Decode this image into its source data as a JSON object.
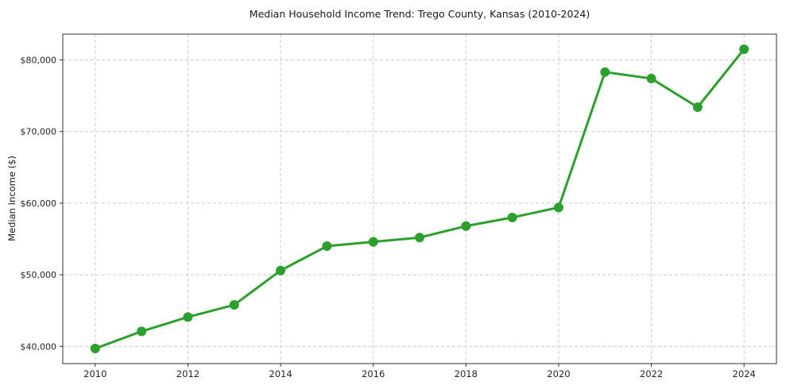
{
  "chart_data": {
    "type": "line",
    "title": "Median Household Income Trend: Trego County, Kansas (2010-2024)",
    "xlabel": "",
    "ylabel": "Median Income ($)",
    "series": [
      {
        "name": "Median Household Income",
        "x": [
          2010,
          2011,
          2012,
          2013,
          2014,
          2015,
          2016,
          2017,
          2018,
          2019,
          2020,
          2021,
          2022,
          2023,
          2024
        ],
        "y": [
          39700,
          42100,
          44100,
          45800,
          50600,
          54000,
          54600,
          55200,
          56800,
          58000,
          59400,
          78300,
          77400,
          73400,
          81500
        ],
        "color": "#2ca02c",
        "marker": "circle",
        "marker_radius": 6,
        "line_width": 3
      }
    ],
    "xlim": [
      2009.3,
      2024.7
    ],
    "ylim": [
      37600,
      83600
    ],
    "xticks": [
      {
        "value": 2010,
        "label": "2010"
      },
      {
        "value": 2012,
        "label": "2012"
      },
      {
        "value": 2014,
        "label": "2014"
      },
      {
        "value": 2016,
        "label": "2016"
      },
      {
        "value": 2018,
        "label": "2018"
      },
      {
        "value": 2020,
        "label": "2020"
      },
      {
        "value": 2022,
        "label": "2022"
      },
      {
        "value": 2024,
        "label": "2024"
      }
    ],
    "yticks": [
      {
        "value": 40000,
        "label": "$40,000"
      },
      {
        "value": 50000,
        "label": "$50,000"
      },
      {
        "value": 60000,
        "label": "$60,000"
      },
      {
        "value": 70000,
        "label": "$70,000"
      },
      {
        "value": 80000,
        "label": "$80,000"
      }
    ],
    "grid": "dashed",
    "legend": false,
    "colors": {
      "line": "#2ca02c",
      "gridline": "#cccccc",
      "spine": "#333333",
      "tick_text": "#262626",
      "background": "#ffffff"
    }
  }
}
